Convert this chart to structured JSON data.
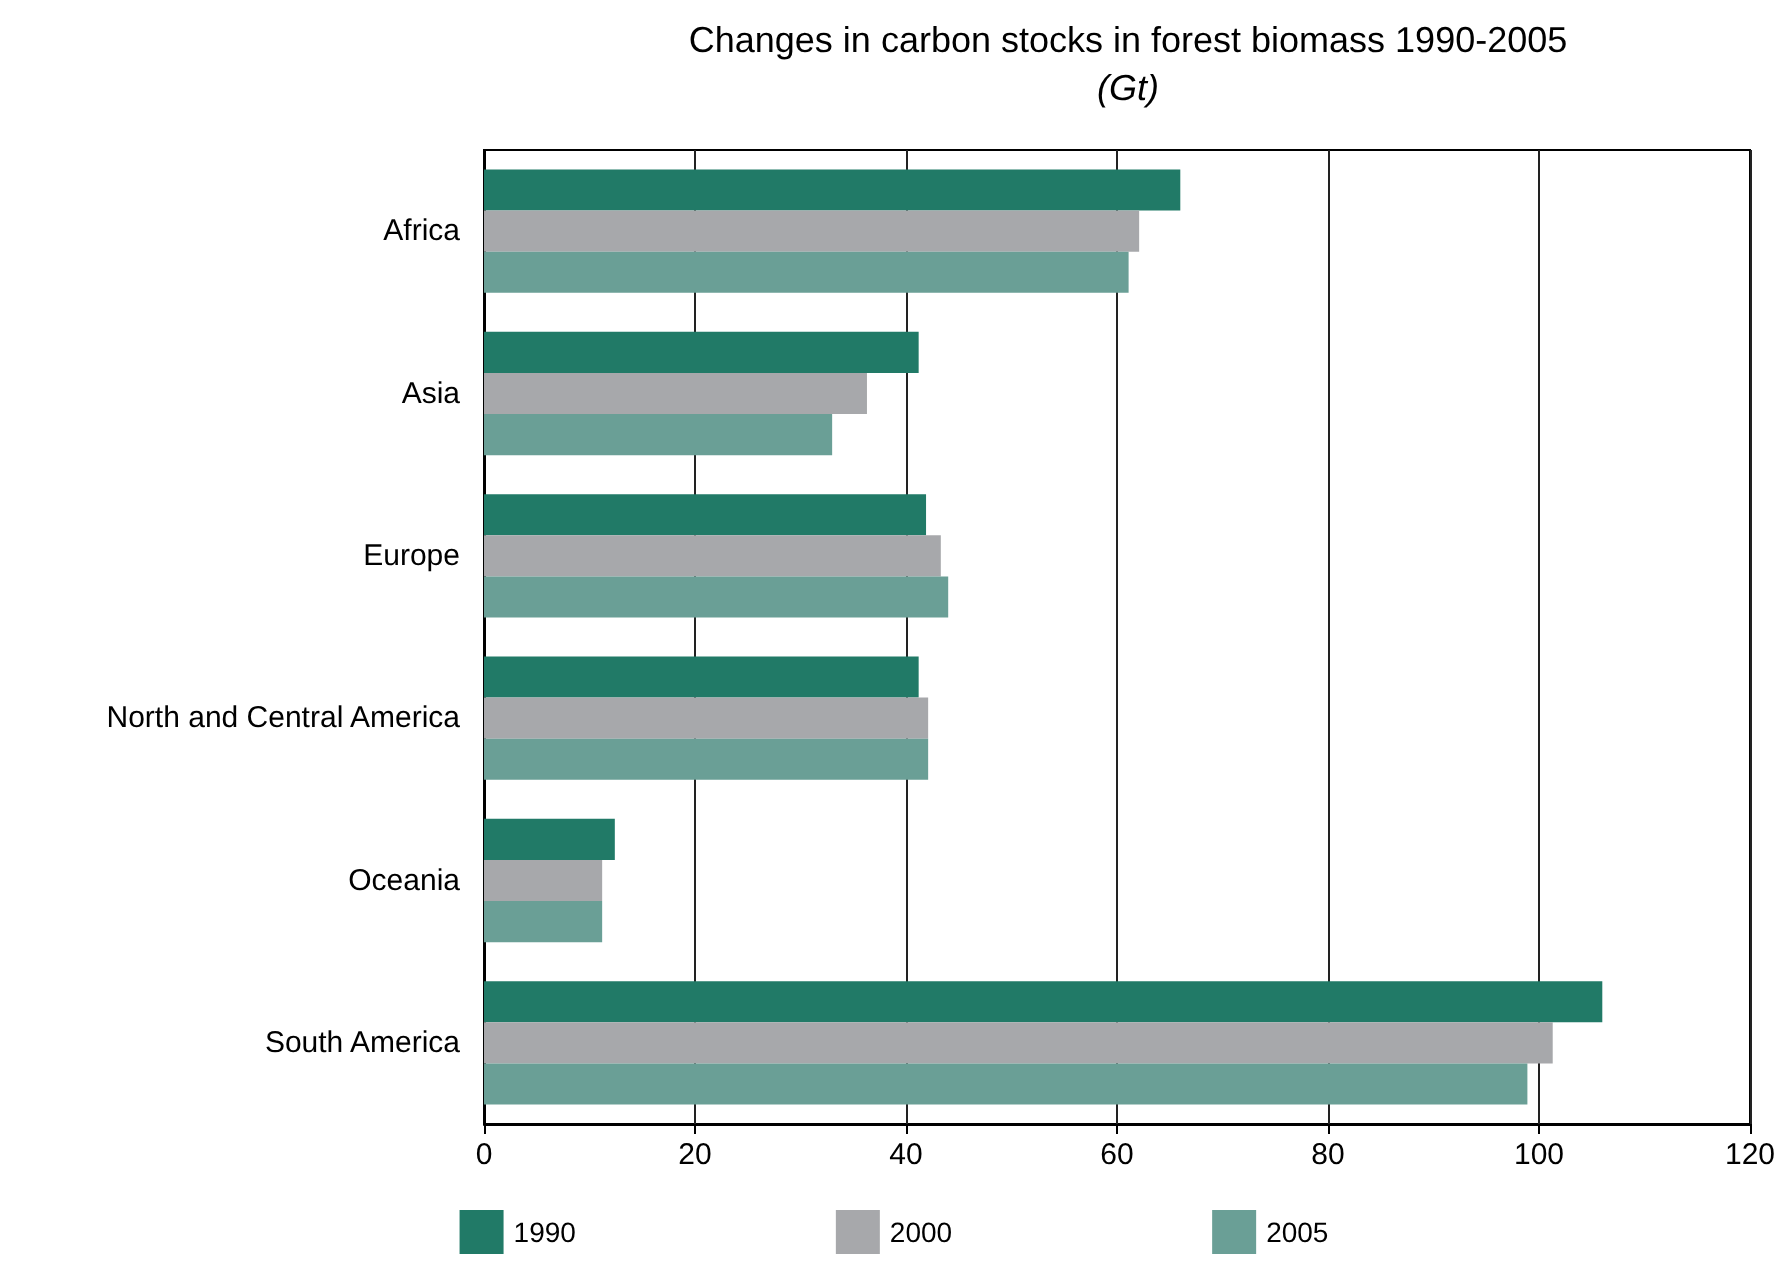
{
  "chart_data": {
    "type": "bar",
    "orientation": "horizontal",
    "title": "Changes in carbon stocks in forest biomass 1990-2005",
    "subtitle": "(Gt)",
    "categories": [
      "Africa",
      "Asia",
      "Europe",
      "North and Central America",
      "Oceania",
      "South America"
    ],
    "series": [
      {
        "name": "1990",
        "color": "#217a67",
        "values": [
          66.0,
          41.2,
          41.9,
          41.2,
          12.4,
          106.0
        ]
      },
      {
        "name": "2000",
        "color": "#a7a8ab",
        "values": [
          62.1,
          36.3,
          43.3,
          42.1,
          11.2,
          101.3
        ]
      },
      {
        "name": "2005",
        "color": "#6a9f96",
        "values": [
          61.1,
          33.0,
          44.0,
          42.1,
          11.2,
          98.9
        ]
      }
    ],
    "xlim": [
      0,
      120
    ],
    "xticks": [
      0,
      20,
      40,
      60,
      80,
      100,
      120
    ],
    "grid": "x",
    "legend": "bottom"
  }
}
